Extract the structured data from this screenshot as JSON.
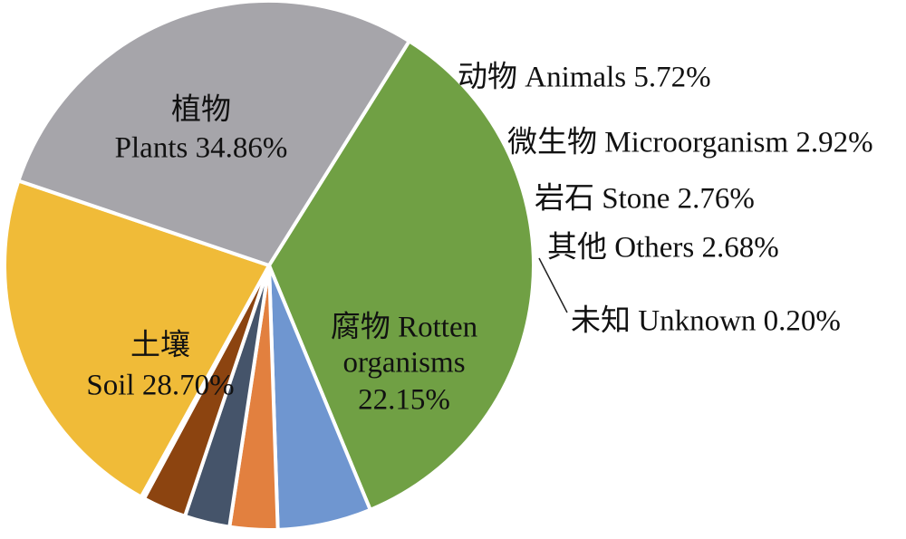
{
  "chart_data": {
    "type": "pie",
    "title": "",
    "slices": [
      {
        "label_cn": "植物",
        "label_en": "Plants",
        "pct_text": "34.86%",
        "value": 34.86,
        "color": "#70a044"
      },
      {
        "label_cn": "动物",
        "label_en": "Animals",
        "pct_text": "5.72%",
        "value": 5.72,
        "color": "#6f96d0"
      },
      {
        "label_cn": "微生物",
        "label_en": "Microorganism",
        "pct_text": "2.92%",
        "value": 2.92,
        "color": "#e2803f"
      },
      {
        "label_cn": "岩石",
        "label_en": "Stone",
        "pct_text": "2.76%",
        "value": 2.76,
        "color": "#45546a"
      },
      {
        "label_cn": "其他",
        "label_en": "Others",
        "pct_text": "2.68%",
        "value": 2.68,
        "color": "#8c4410"
      },
      {
        "label_cn": "未知",
        "label_en": "Unknown",
        "pct_text": "0.20%",
        "value": 0.2,
        "color": "#5a5a5a"
      },
      {
        "label_cn": "腐物",
        "label_en": "Rotten organisms",
        "pct_text": "22.15%",
        "value": 22.15,
        "color": "#f0bb38"
      },
      {
        "label_cn": "土壤",
        "label_en": "Soil",
        "pct_text": "28.70%",
        "value": 28.7,
        "color": "#a6a5aa"
      }
    ]
  }
}
